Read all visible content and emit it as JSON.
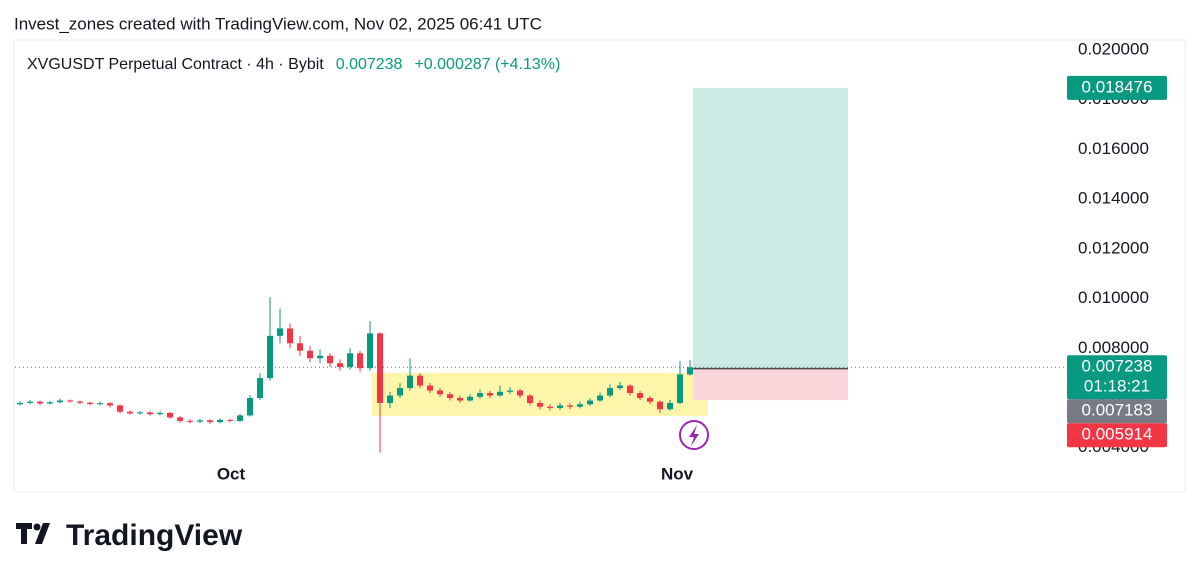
{
  "watermark": "Invest_zones created with TradingView.com, Nov 02, 2025 06:41 UTC",
  "brand": "TradingView",
  "chart_data": {
    "type": "candlestick",
    "symbol": "XVGUSDT Perpetual Contract · 4h · Bybit",
    "last": 0.007238,
    "change": "+0.000287 (+4.13%)",
    "countdown": "01:18:21",
    "up_color": "#089981",
    "down_color": "#f23645",
    "candles": [
      [
        0.00575,
        0.00588,
        0.0057,
        0.0058
      ],
      [
        0.0058,
        0.00592,
        0.00575,
        0.00585
      ],
      [
        0.00585,
        0.0059,
        0.00572,
        0.00578
      ],
      [
        0.00578,
        0.00589,
        0.00574,
        0.00583
      ],
      [
        0.00583,
        0.00597,
        0.00579,
        0.0059
      ],
      [
        0.0059,
        0.00594,
        0.00581,
        0.00586
      ],
      [
        0.00586,
        0.0059,
        0.00576,
        0.00581
      ],
      [
        0.00581,
        0.00585,
        0.0057,
        0.00576
      ],
      [
        0.00576,
        0.00586,
        0.00571,
        0.00579
      ],
      [
        0.00579,
        0.00584,
        0.00562,
        0.0057
      ],
      [
        0.0057,
        0.00574,
        0.00538,
        0.00545
      ],
      [
        0.00545,
        0.00551,
        0.00532,
        0.00538
      ],
      [
        0.00538,
        0.00548,
        0.00533,
        0.00542
      ],
      [
        0.00542,
        0.00547,
        0.00529,
        0.00535
      ],
      [
        0.00535,
        0.00546,
        0.0053,
        0.0054
      ],
      [
        0.0054,
        0.00544,
        0.00516,
        0.00522
      ],
      [
        0.00522,
        0.00527,
        0.005,
        0.00508
      ],
      [
        0.00508,
        0.00514,
        0.00498,
        0.00505
      ],
      [
        0.00505,
        0.00516,
        0.00499,
        0.0051
      ],
      [
        0.0051,
        0.00514,
        0.00496,
        0.00503
      ],
      [
        0.00503,
        0.00518,
        0.00498,
        0.00512
      ],
      [
        0.00512,
        0.00517,
        0.00502,
        0.00508
      ],
      [
        0.00508,
        0.00536,
        0.00504,
        0.0053
      ],
      [
        0.0053,
        0.00612,
        0.00525,
        0.006
      ],
      [
        0.006,
        0.007,
        0.00592,
        0.0068
      ],
      [
        0.0068,
        0.01006,
        0.0067,
        0.0085
      ],
      [
        0.0085,
        0.0096,
        0.0082,
        0.0088
      ],
      [
        0.0088,
        0.009,
        0.008,
        0.0082
      ],
      [
        0.0082,
        0.0085,
        0.0077,
        0.0079
      ],
      [
        0.0079,
        0.0081,
        0.00745,
        0.0076
      ],
      [
        0.0076,
        0.00795,
        0.0074,
        0.0077
      ],
      [
        0.0077,
        0.0078,
        0.00725,
        0.0074
      ],
      [
        0.0074,
        0.00755,
        0.0071,
        0.00725
      ],
      [
        0.00725,
        0.008,
        0.00715,
        0.0078
      ],
      [
        0.0078,
        0.0079,
        0.00705,
        0.0072
      ],
      [
        0.0072,
        0.0091,
        0.0071,
        0.0086
      ],
      [
        0.0086,
        0.00865,
        0.0038,
        0.0058
      ],
      [
        0.0058,
        0.00625,
        0.0056,
        0.0061
      ],
      [
        0.0061,
        0.0066,
        0.006,
        0.0064
      ],
      [
        0.0064,
        0.0076,
        0.0063,
        0.0069
      ],
      [
        0.0069,
        0.007,
        0.0064,
        0.0065
      ],
      [
        0.0065,
        0.0066,
        0.0062,
        0.0063
      ],
      [
        0.0063,
        0.0064,
        0.00605,
        0.00615
      ],
      [
        0.00615,
        0.00625,
        0.0059,
        0.006
      ],
      [
        0.006,
        0.0061,
        0.0058,
        0.0059
      ],
      [
        0.0059,
        0.00615,
        0.00585,
        0.00605
      ],
      [
        0.00605,
        0.00635,
        0.00598,
        0.0062
      ],
      [
        0.0062,
        0.00628,
        0.006,
        0.0061
      ],
      [
        0.0061,
        0.0065,
        0.00605,
        0.00625
      ],
      [
        0.00625,
        0.00645,
        0.00615,
        0.0063
      ],
      [
        0.0063,
        0.00638,
        0.006,
        0.0061
      ],
      [
        0.0061,
        0.00615,
        0.0057,
        0.0058
      ],
      [
        0.0058,
        0.0059,
        0.00555,
        0.00565
      ],
      [
        0.00565,
        0.00575,
        0.0055,
        0.0056
      ],
      [
        0.0056,
        0.0058,
        0.00552,
        0.0057
      ],
      [
        0.0057,
        0.00578,
        0.00556,
        0.00565
      ],
      [
        0.00565,
        0.00585,
        0.00558,
        0.00575
      ],
      [
        0.00575,
        0.006,
        0.00568,
        0.0059
      ],
      [
        0.0059,
        0.00622,
        0.00585,
        0.0061
      ],
      [
        0.0061,
        0.00655,
        0.00602,
        0.0064
      ],
      [
        0.0064,
        0.00665,
        0.00632,
        0.0065
      ],
      [
        0.0065,
        0.00655,
        0.0061,
        0.0062
      ],
      [
        0.0062,
        0.00628,
        0.00592,
        0.006
      ],
      [
        0.006,
        0.00608,
        0.00575,
        0.00585
      ],
      [
        0.00585,
        0.0059,
        0.0054,
        0.00555
      ],
      [
        0.00555,
        0.00592,
        0.00548,
        0.0058
      ],
      [
        0.0058,
        0.0075,
        0.00575,
        0.00695
      ],
      [
        0.00695,
        0.00752,
        0.0069,
        0.007238
      ]
    ],
    "xlim": [
      -0.5,
      104.5
    ],
    "xticks": [
      {
        "value": 21.1,
        "label": "Oct"
      },
      {
        "value": 65.7,
        "label": "Nov"
      }
    ],
    "ylim": [
      0.0023,
      0.0204
    ],
    "yticks": [
      {
        "value": 0.004,
        "label": "0.004000"
      },
      {
        "value": 0.006,
        "label": "0.006000"
      },
      {
        "value": 0.008,
        "label": "0.008000"
      },
      {
        "value": 0.01,
        "label": "0.010000"
      },
      {
        "value": 0.012,
        "label": "0.012000"
      },
      {
        "value": 0.014,
        "label": "0.014000"
      },
      {
        "value": 0.016,
        "label": "0.016000"
      },
      {
        "value": 0.018,
        "label": "0.018000"
      },
      {
        "value": 0.02,
        "label": "0.020000"
      }
    ],
    "range_box": {
      "low": 0.00528,
      "high": 0.00701,
      "x_range": [
        35.2,
        68.8
      ],
      "color": "#fff59d"
    },
    "position": {
      "target": 0.018476,
      "entry": 0.007183,
      "stop": 0.005914,
      "x_range": [
        67.3,
        82.8
      ],
      "profit_color": "#cdeae4",
      "loss_color": "#fbd6da",
      "entry_label_color": "#787b86"
    }
  }
}
